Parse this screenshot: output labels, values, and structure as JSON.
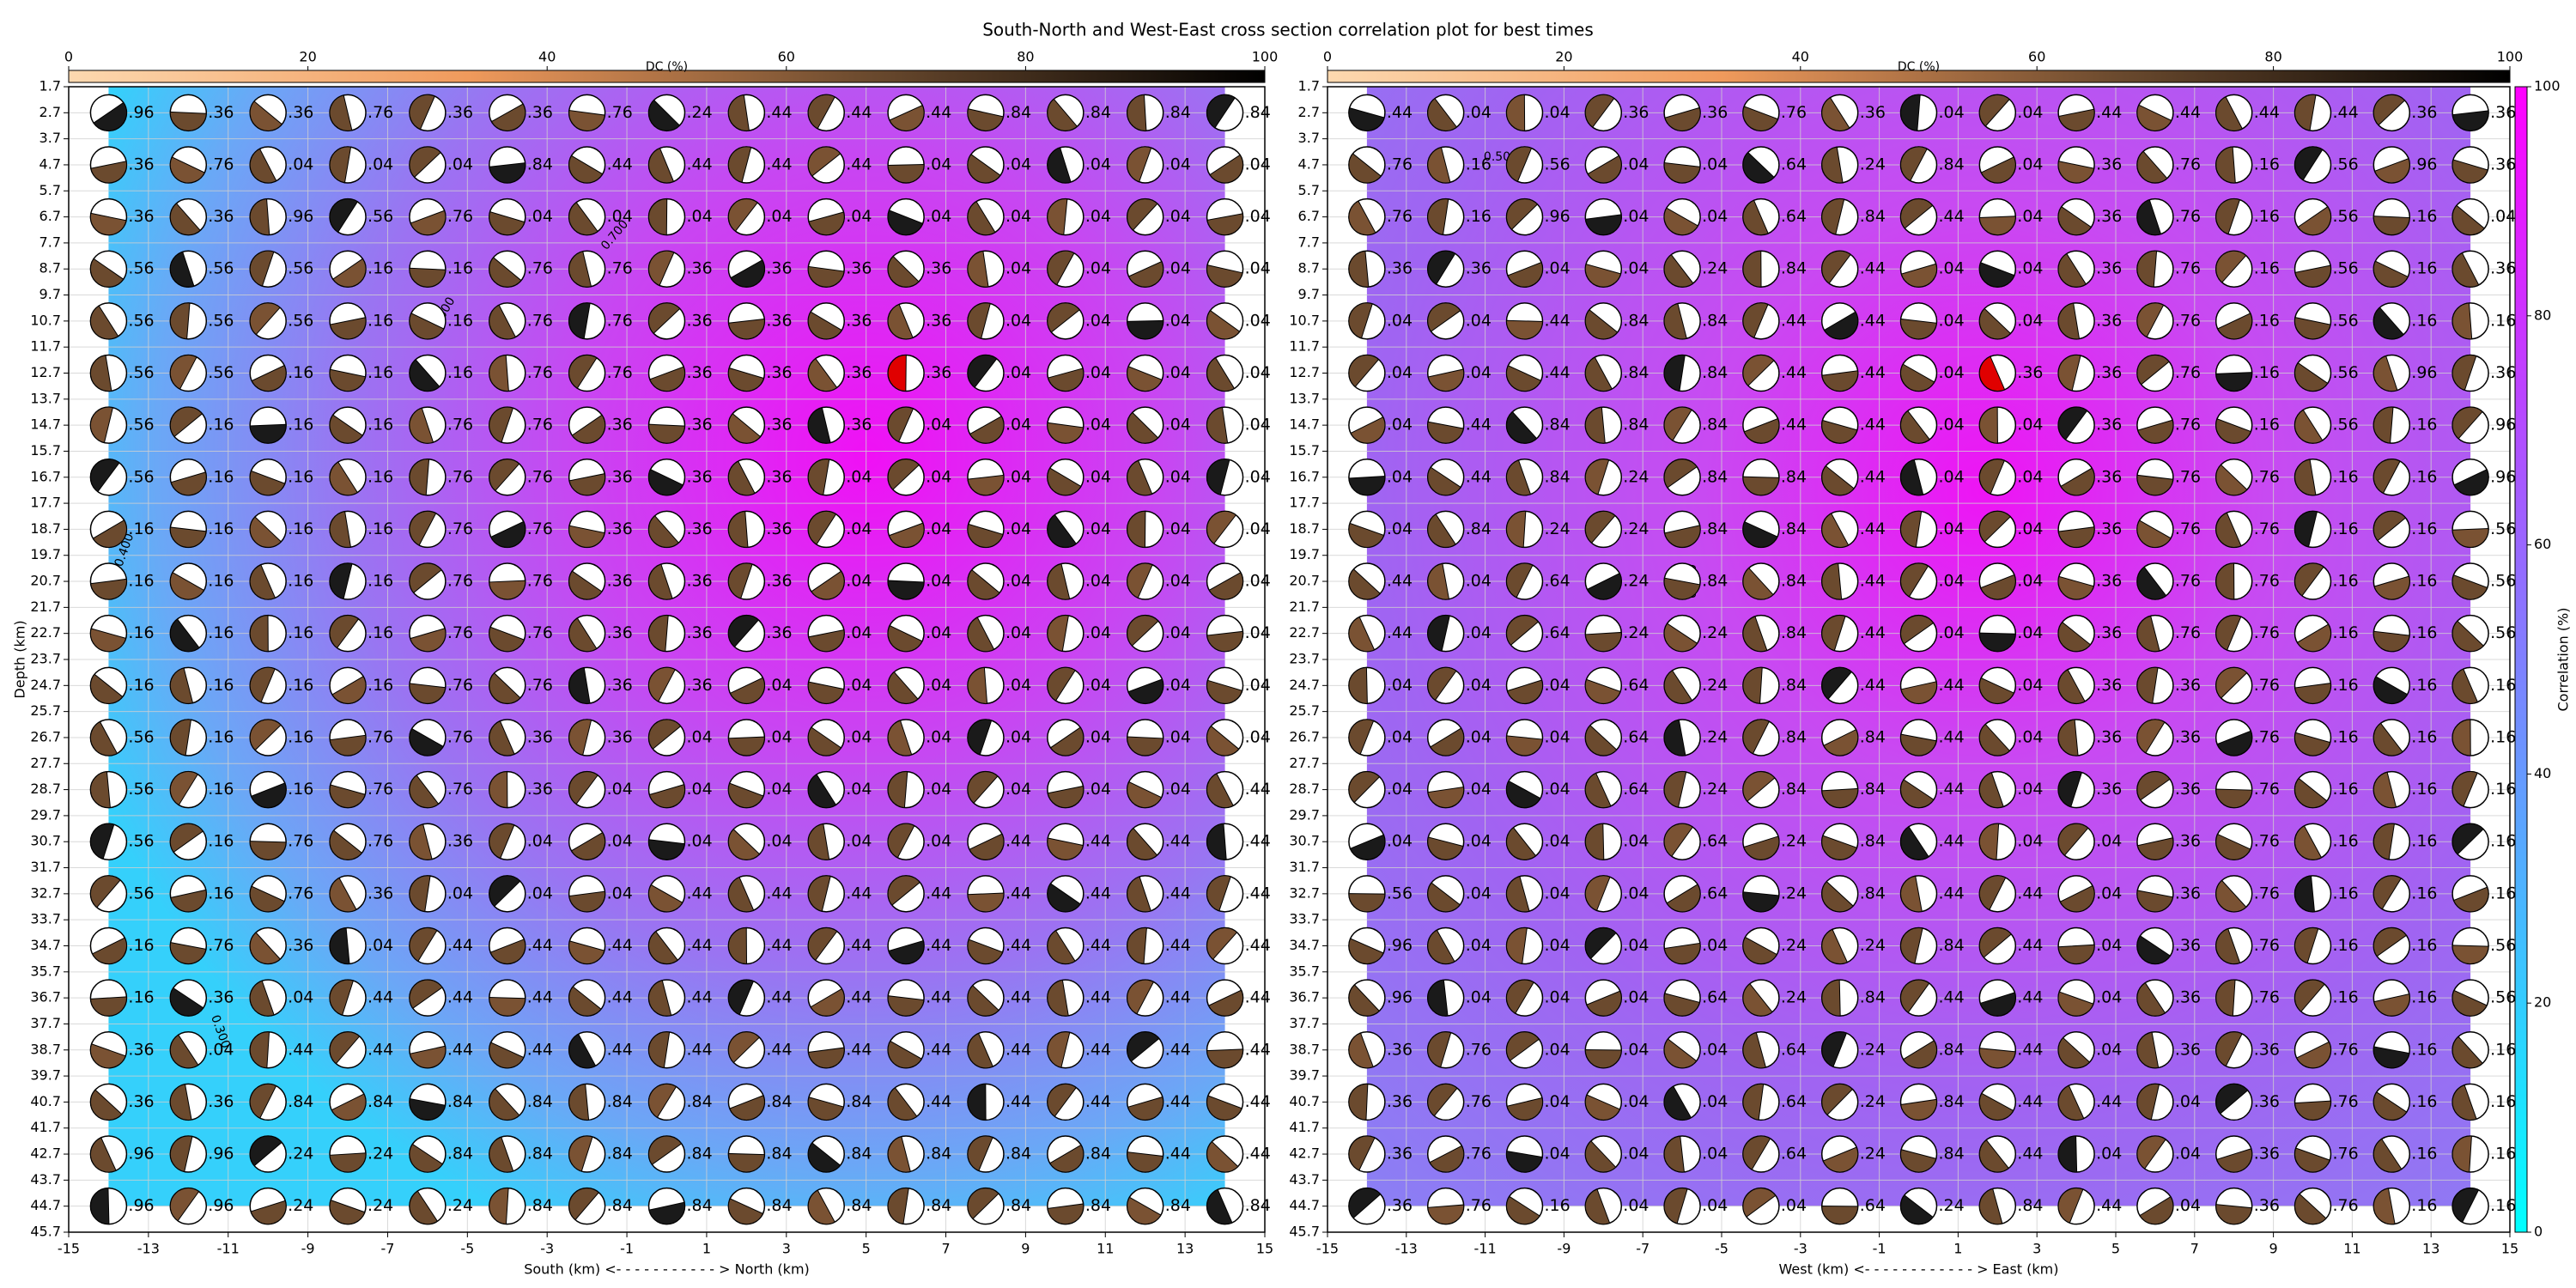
{
  "title": "South-North and West-East cross section correlation plot for best times",
  "correlation_colorbar": {
    "label": "Correlation (%)",
    "lim": [
      0,
      100
    ],
    "ticks": [
      0,
      20,
      40,
      60,
      80,
      100
    ],
    "colors": [
      "#00ffff",
      "#ff00ff"
    ]
  },
  "chart_data": [
    {
      "type": "beachball-grid",
      "xlabel": "South (km) <- - - - - - - - - - - > North (km)",
      "ylabel": "Depth (km)",
      "xlim": [
        -15,
        15
      ],
      "xticks": [
        -15,
        -13,
        -11,
        -9,
        -7,
        -5,
        -3,
        -1,
        1,
        3,
        5,
        7,
        9,
        11,
        13,
        15
      ],
      "ylim": [
        45.7,
        1.7
      ],
      "yticks": [
        1.7,
        2.7,
        3.7,
        4.7,
        5.7,
        6.7,
        7.7,
        8.7,
        9.7,
        10.7,
        11.7,
        12.7,
        13.7,
        14.7,
        15.7,
        16.7,
        17.7,
        18.7,
        19.7,
        20.7,
        21.7,
        22.7,
        23.7,
        24.7,
        25.7,
        26.7,
        27.7,
        28.7,
        29.7,
        30.7,
        31.7,
        32.7,
        33.7,
        34.7,
        35.7,
        36.7,
        37.7,
        38.7,
        39.7,
        40.7,
        41.7,
        42.7,
        43.7,
        44.7,
        45.7
      ],
      "grid": true,
      "x": [
        -14,
        -12,
        -10,
        -8,
        -6,
        -4,
        -2,
        0,
        2,
        4,
        6,
        8,
        10,
        12,
        14
      ],
      "depths": [
        2.7,
        4.7,
        6.7,
        8.7,
        10.7,
        12.7,
        14.7,
        16.7,
        18.7,
        20.7,
        22.7,
        24.7,
        26.7,
        28.7,
        30.7,
        32.7,
        34.7,
        36.7,
        38.7,
        40.7,
        42.7,
        44.7
      ],
      "best": {
        "x": 6,
        "depth": 12.7
      },
      "annotations": [
        "0.400",
        "0.300",
        "0.600",
        "0.700"
      ],
      "colorbar": {
        "label": "DC (%)",
        "lim": [
          0,
          100
        ],
        "ticks": [
          0,
          20,
          40,
          60,
          80,
          100
        ],
        "colors": [
          "#fdd9b0",
          "#f09a5c",
          "#6b4a2e",
          "#000000"
        ]
      },
      "labels": [
        [
          ".96",
          ".36",
          ".36",
          ".76",
          ".36",
          ".36",
          ".76",
          ".24",
          ".44",
          ".44",
          ".44",
          ".84",
          ".84",
          ".84",
          ".84"
        ],
        [
          ".36",
          ".76",
          ".04",
          ".04",
          ".04",
          ".84",
          ".44",
          ".44",
          ".44",
          ".44",
          ".04",
          ".04",
          ".04",
          ".04",
          ".04"
        ],
        [
          ".36",
          ".36",
          ".96",
          ".56",
          ".76",
          ".04",
          ".04",
          ".04",
          ".04",
          ".04",
          ".04",
          ".04",
          ".04",
          ".04",
          ".04"
        ],
        [
          ".56",
          ".56",
          ".56",
          ".16",
          ".16",
          ".76",
          ".76",
          ".36",
          ".36",
          ".36",
          ".36",
          ".04",
          ".04",
          ".04",
          ".04"
        ],
        [
          ".56",
          ".56",
          ".56",
          ".16",
          ".16",
          ".76",
          ".76",
          ".36",
          ".36",
          ".36",
          ".36",
          ".04",
          ".04",
          ".04",
          ".04"
        ],
        [
          ".56",
          ".56",
          ".16",
          ".16",
          ".16",
          ".76",
          ".76",
          ".36",
          ".36",
          ".36",
          ".36",
          ".04",
          ".04",
          ".04",
          ".04"
        ],
        [
          ".56",
          ".16",
          ".16",
          ".16",
          ".76",
          ".76",
          ".36",
          ".36",
          ".36",
          ".36",
          ".04",
          ".04",
          ".04",
          ".04",
          ".04"
        ],
        [
          ".56",
          ".16",
          ".16",
          ".16",
          ".76",
          ".76",
          ".36",
          ".36",
          ".36",
          ".04",
          ".04",
          ".04",
          ".04",
          ".04",
          ".04"
        ],
        [
          ".16",
          ".16",
          ".16",
          ".16",
          ".76",
          ".76",
          ".36",
          ".36",
          ".36",
          ".04",
          ".04",
          ".04",
          ".04",
          ".04",
          ".04"
        ],
        [
          ".16",
          ".16",
          ".16",
          ".16",
          ".76",
          ".76",
          ".36",
          ".36",
          ".36",
          ".04",
          ".04",
          ".04",
          ".04",
          ".04",
          ".04"
        ],
        [
          ".16",
          ".16",
          ".16",
          ".16",
          ".76",
          ".76",
          ".36",
          ".36",
          ".36",
          ".04",
          ".04",
          ".04",
          ".04",
          ".04",
          ".04"
        ],
        [
          ".16",
          ".16",
          ".16",
          ".16",
          ".76",
          ".76",
          ".36",
          ".36",
          ".04",
          ".04",
          ".04",
          ".04",
          ".04",
          ".04",
          ".04"
        ],
        [
          ".56",
          ".16",
          ".16",
          ".76",
          ".76",
          ".36",
          ".36",
          ".04",
          ".04",
          ".04",
          ".04",
          ".04",
          ".04",
          ".04",
          ".04"
        ],
        [
          ".56",
          ".16",
          ".16",
          ".76",
          ".76",
          ".36",
          ".04",
          ".04",
          ".04",
          ".04",
          ".04",
          ".04",
          ".04",
          ".04",
          ".44"
        ],
        [
          ".56",
          ".16",
          ".76",
          ".76",
          ".36",
          ".04",
          ".04",
          ".04",
          ".04",
          ".04",
          ".04",
          ".44",
          ".44",
          ".44",
          ".44"
        ],
        [
          ".56",
          ".16",
          ".76",
          ".36",
          ".04",
          ".04",
          ".04",
          ".44",
          ".44",
          ".44",
          ".44",
          ".44",
          ".44",
          ".44",
          ".44"
        ],
        [
          ".16",
          ".76",
          ".36",
          ".04",
          ".44",
          ".44",
          ".44",
          ".44",
          ".44",
          ".44",
          ".44",
          ".44",
          ".44",
          ".44",
          ".44"
        ],
        [
          ".16",
          ".36",
          ".04",
          ".44",
          ".44",
          ".44",
          ".44",
          ".44",
          ".44",
          ".44",
          ".44",
          ".44",
          ".44",
          ".44",
          ".44"
        ],
        [
          ".36",
          ".04",
          ".44",
          ".44",
          ".44",
          ".44",
          ".44",
          ".44",
          ".44",
          ".44",
          ".44",
          ".44",
          ".44",
          ".44",
          ".44"
        ],
        [
          ".36",
          ".36",
          ".84",
          ".84",
          ".84",
          ".84",
          ".84",
          ".84",
          ".84",
          ".84",
          ".44",
          ".44",
          ".44",
          ".44",
          ".44"
        ],
        [
          ".96",
          ".96",
          ".24",
          ".24",
          ".84",
          ".84",
          ".84",
          ".84",
          ".84",
          ".84",
          ".84",
          ".84",
          ".84",
          ".44",
          ".44"
        ],
        [
          ".96",
          ".96",
          ".24",
          ".24",
          ".24",
          ".84",
          ".84",
          ".84",
          ".84",
          ".84",
          ".84",
          ".84",
          ".84",
          ".84",
          ".84"
        ]
      ]
    },
    {
      "type": "beachball-grid",
      "xlabel": "West (km) <- - - - - - - - - - - - > East (km)",
      "xlim": [
        -15,
        15
      ],
      "xticks": [
        -15,
        -13,
        -11,
        -9,
        -7,
        -5,
        -3,
        -1,
        1,
        3,
        5,
        7,
        9,
        11,
        13,
        15
      ],
      "ylim": [
        45.7,
        1.7
      ],
      "yticks": [
        1.7,
        2.7,
        3.7,
        4.7,
        5.7,
        6.7,
        7.7,
        8.7,
        9.7,
        10.7,
        11.7,
        12.7,
        13.7,
        14.7,
        15.7,
        16.7,
        17.7,
        18.7,
        19.7,
        20.7,
        21.7,
        22.7,
        23.7,
        24.7,
        25.7,
        26.7,
        27.7,
        28.7,
        29.7,
        30.7,
        31.7,
        32.7,
        33.7,
        34.7,
        35.7,
        36.7,
        37.7,
        38.7,
        39.7,
        40.7,
        41.7,
        42.7,
        43.7,
        44.7,
        45.7
      ],
      "grid": true,
      "x": [
        -14,
        -12,
        -10,
        -8,
        -6,
        -4,
        -2,
        0,
        2,
        4,
        6,
        8,
        10,
        12,
        14
      ],
      "depths": [
        2.7,
        4.7,
        6.7,
        8.7,
        10.7,
        12.7,
        14.7,
        16.7,
        18.7,
        20.7,
        22.7,
        24.7,
        26.7,
        28.7,
        30.7,
        32.7,
        34.7,
        36.7,
        38.7,
        40.7,
        42.7,
        44.7
      ],
      "best": {
        "x": 2,
        "depth": 12.7
      },
      "annotations": [
        "0.500",
        "0.700"
      ],
      "colorbar": {
        "label": "DC (%)",
        "lim": [
          0,
          100
        ],
        "ticks": [
          0,
          20,
          40,
          60,
          80,
          100
        ],
        "colors": [
          "#fdd9b0",
          "#f09a5c",
          "#6b4a2e",
          "#000000"
        ]
      },
      "labels": [
        [
          ".44",
          ".04",
          ".04",
          ".36",
          ".36",
          ".76",
          ".36",
          ".04",
          ".04",
          ".44",
          ".44",
          ".44",
          ".44",
          ".36",
          ".36"
        ],
        [
          ".76",
          ".16",
          ".56",
          ".04",
          ".04",
          ".64",
          ".24",
          ".84",
          ".04",
          ".36",
          ".76",
          ".16",
          ".56",
          ".96",
          ".36"
        ],
        [
          ".76",
          ".16",
          ".96",
          ".04",
          ".04",
          ".64",
          ".84",
          ".44",
          ".04",
          ".36",
          ".76",
          ".16",
          ".56",
          ".16",
          ".04"
        ],
        [
          ".36",
          ".36",
          ".04",
          ".04",
          ".24",
          ".84",
          ".44",
          ".04",
          ".04",
          ".36",
          ".76",
          ".16",
          ".56",
          ".16",
          ".36"
        ],
        [
          ".04",
          ".04",
          ".44",
          ".84",
          ".84",
          ".44",
          ".44",
          ".04",
          ".04",
          ".36",
          ".76",
          ".16",
          ".56",
          ".16",
          ".16"
        ],
        [
          ".04",
          ".04",
          ".44",
          ".84",
          ".84",
          ".44",
          ".44",
          ".04",
          ".36",
          ".36",
          ".76",
          ".16",
          ".56",
          ".96",
          ".36"
        ],
        [
          ".04",
          ".44",
          ".84",
          ".84",
          ".84",
          ".44",
          ".44",
          ".04",
          ".04",
          ".36",
          ".76",
          ".16",
          ".56",
          ".16",
          ".96"
        ],
        [
          ".04",
          ".44",
          ".84",
          ".24",
          ".84",
          ".84",
          ".44",
          ".04",
          ".04",
          ".36",
          ".76",
          ".76",
          ".16",
          ".16",
          ".96"
        ],
        [
          ".04",
          ".84",
          ".24",
          ".24",
          ".84",
          ".84",
          ".44",
          ".04",
          ".04",
          ".36",
          ".76",
          ".76",
          ".16",
          ".16",
          ".56"
        ],
        [
          ".44",
          ".04",
          ".64",
          ".24",
          ".84",
          ".84",
          ".44",
          ".04",
          ".04",
          ".36",
          ".76",
          ".76",
          ".16",
          ".16",
          ".56"
        ],
        [
          ".44",
          ".04",
          ".64",
          ".24",
          ".24",
          ".84",
          ".44",
          ".04",
          ".04",
          ".36",
          ".76",
          ".76",
          ".16",
          ".16",
          ".56"
        ],
        [
          ".04",
          ".04",
          ".04",
          ".64",
          ".24",
          ".84",
          ".44",
          ".44",
          ".04",
          ".36",
          ".36",
          ".76",
          ".16",
          ".16",
          ".16"
        ],
        [
          ".04",
          ".04",
          ".04",
          ".64",
          ".24",
          ".84",
          ".84",
          ".44",
          ".04",
          ".36",
          ".36",
          ".76",
          ".16",
          ".16",
          ".16"
        ],
        [
          ".04",
          ".04",
          ".04",
          ".64",
          ".24",
          ".84",
          ".84",
          ".44",
          ".04",
          ".36",
          ".36",
          ".76",
          ".16",
          ".16",
          ".16"
        ],
        [
          ".04",
          ".04",
          ".04",
          ".04",
          ".64",
          ".24",
          ".84",
          ".44",
          ".04",
          ".04",
          ".36",
          ".76",
          ".16",
          ".16",
          ".16"
        ],
        [
          ".56",
          ".04",
          ".04",
          ".04",
          ".64",
          ".24",
          ".84",
          ".44",
          ".44",
          ".04",
          ".36",
          ".76",
          ".16",
          ".16",
          ".16"
        ],
        [
          ".96",
          ".04",
          ".04",
          ".04",
          ".04",
          ".24",
          ".24",
          ".84",
          ".44",
          ".04",
          ".36",
          ".76",
          ".16",
          ".16",
          ".56"
        ],
        [
          ".96",
          ".04",
          ".04",
          ".04",
          ".64",
          ".24",
          ".84",
          ".44",
          ".44",
          ".04",
          ".36",
          ".76",
          ".16",
          ".16",
          ".56"
        ],
        [
          ".36",
          ".76",
          ".04",
          ".04",
          ".04",
          ".64",
          ".24",
          ".84",
          ".44",
          ".04",
          ".36",
          ".36",
          ".76",
          ".16",
          ".16"
        ],
        [
          ".36",
          ".76",
          ".04",
          ".04",
          ".04",
          ".64",
          ".24",
          ".84",
          ".44",
          ".44",
          ".04",
          ".36",
          ".76",
          ".16",
          ".16"
        ],
        [
          ".36",
          ".76",
          ".04",
          ".04",
          ".04",
          ".64",
          ".24",
          ".84",
          ".44",
          ".04",
          ".04",
          ".36",
          ".76",
          ".16",
          ".16"
        ],
        [
          ".36",
          ".76",
          ".16",
          ".04",
          ".04",
          ".04",
          ".64",
          ".24",
          ".84",
          ".44",
          ".04",
          ".36",
          ".76",
          ".16",
          ".16"
        ]
      ]
    }
  ]
}
